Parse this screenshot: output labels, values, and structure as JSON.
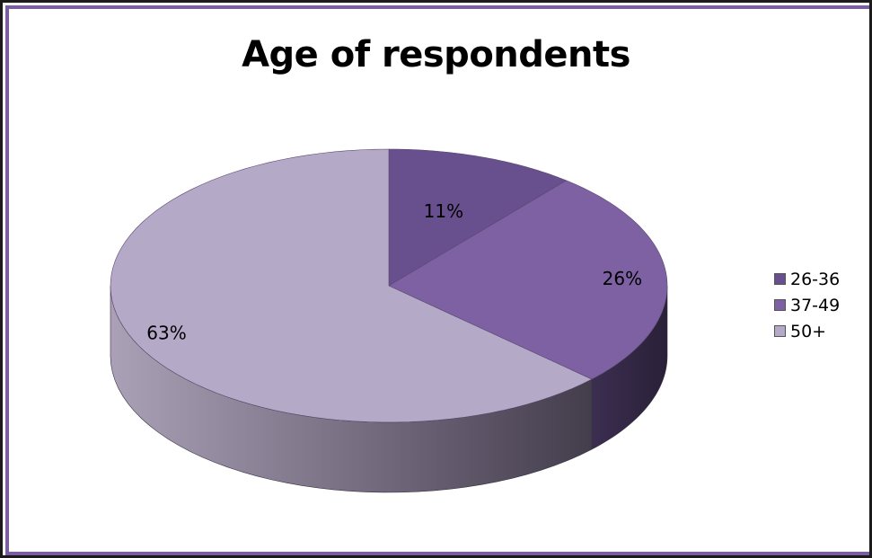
{
  "chart_data": {
    "type": "pie",
    "title": "Age of respondents",
    "categories": [
      "26-36",
      "37-49",
      "50+"
    ],
    "values": [
      11,
      26,
      63
    ],
    "labels": [
      "11%",
      "26%",
      "63%"
    ],
    "legend": "right",
    "colors": [
      "#684f8d",
      "#7e61a3",
      "#b5a9c8"
    ],
    "style": "3d"
  }
}
